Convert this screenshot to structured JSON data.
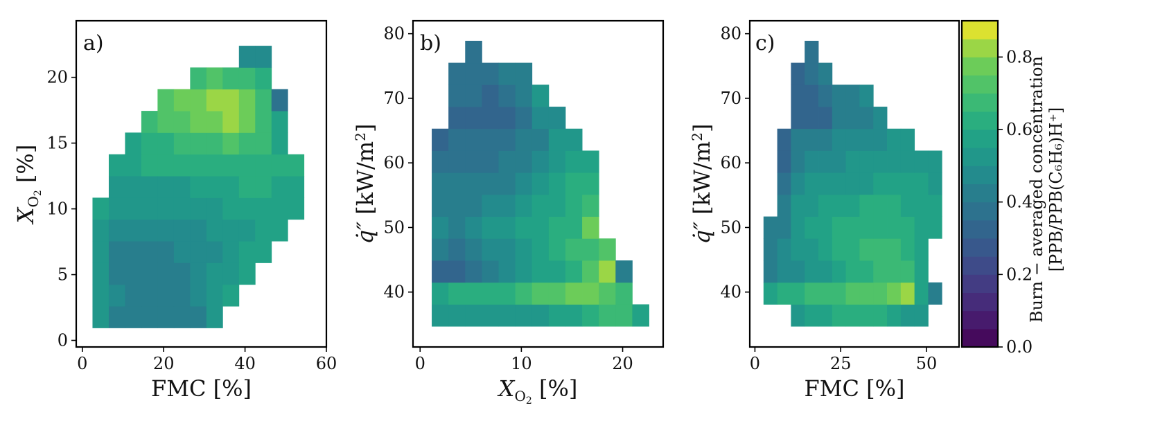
{
  "chart_data": [
    {
      "type": "heatmap",
      "panel_label": "a)",
      "xlabel": "FMC [%]",
      "ylabel": "X_O2 [%]",
      "xlim": [
        -1.5,
        60
      ],
      "ylim": [
        -0.5,
        24.3
      ],
      "xticks": [
        "0",
        "20",
        "40",
        "60"
      ],
      "yticks": [
        "0",
        "5",
        "10",
        "15",
        "20"
      ],
      "cell_width": 4.0,
      "cell_height": 1.65,
      "x_starts": [
        2.5,
        6.5,
        10.5,
        14.5,
        18.5,
        22.5,
        26.5,
        30.5,
        34.5,
        38.5,
        42.5,
        46.5,
        50.5
      ],
      "y_starts": [
        0.95,
        2.6,
        4.25,
        5.9,
        7.55,
        9.2,
        10.85,
        12.5,
        14.15,
        15.8,
        17.45,
        19.1,
        20.75
      ],
      "rows": [
        [
          0.52,
          0.44,
          0.42,
          0.4,
          0.4,
          0.42,
          0.44,
          0.5,
          null,
          null,
          null,
          null,
          null
        ],
        [
          0.52,
          0.45,
          0.42,
          0.42,
          0.42,
          0.44,
          0.46,
          0.5,
          0.55,
          null,
          null,
          null,
          null
        ],
        [
          0.5,
          0.44,
          0.42,
          0.42,
          0.42,
          0.44,
          0.46,
          0.5,
          0.52,
          0.56,
          null,
          null,
          null
        ],
        [
          0.5,
          0.44,
          0.43,
          0.43,
          0.44,
          0.45,
          0.46,
          0.48,
          0.52,
          0.55,
          0.58,
          null,
          null
        ],
        [
          0.5,
          0.45,
          0.45,
          0.45,
          0.46,
          0.47,
          0.48,
          0.5,
          0.52,
          0.54,
          0.56,
          0.58,
          null
        ],
        [
          0.58,
          0.52,
          0.5,
          0.52,
          0.52,
          0.52,
          0.54,
          0.54,
          0.56,
          0.58,
          0.58,
          0.58,
          0.56
        ],
        [
          null,
          0.52,
          0.54,
          0.54,
          0.54,
          0.54,
          0.56,
          0.58,
          0.58,
          0.62,
          0.62,
          0.58,
          0.58
        ],
        [
          null,
          0.56,
          0.58,
          0.6,
          0.6,
          0.6,
          0.62,
          0.62,
          0.62,
          0.64,
          0.62,
          0.6,
          0.62
        ],
        [
          null,
          null,
          0.58,
          0.64,
          0.64,
          0.68,
          0.68,
          0.7,
          0.72,
          0.7,
          0.7,
          0.58,
          null
        ],
        [
          null,
          null,
          null,
          0.7,
          0.72,
          0.74,
          0.78,
          0.78,
          0.8,
          0.76,
          0.66,
          0.55,
          null
        ],
        [
          null,
          null,
          null,
          null,
          0.72,
          0.76,
          0.78,
          0.8,
          0.82,
          0.76,
          0.66,
          0.38,
          null
        ],
        [
          null,
          null,
          null,
          null,
          null,
          null,
          0.66,
          0.72,
          0.7,
          0.68,
          0.62,
          null,
          null
        ],
        [
          null,
          null,
          null,
          null,
          null,
          null,
          null,
          null,
          null,
          0.48,
          0.48,
          null,
          null
        ]
      ]
    },
    {
      "type": "heatmap",
      "panel_label": "b)",
      "xlabel": "X_O2 [%]",
      "ylabel": "q'' [kW/m2]",
      "xlim": [
        -0.7,
        24.0
      ],
      "ylim": [
        31.5,
        82.0
      ],
      "xticks": [
        "0",
        "10",
        "20"
      ],
      "yticks": [
        "40",
        "50",
        "60",
        "70",
        "80"
      ],
      "cell_width": 1.65,
      "cell_height": 3.4,
      "x_starts": [
        1.15,
        2.8,
        4.45,
        6.1,
        7.75,
        9.4,
        11.05,
        12.7,
        14.35,
        16.0,
        17.65,
        19.3,
        20.95
      ],
      "y_starts": [
        34.7,
        38.1,
        41.5,
        44.9,
        48.3,
        51.7,
        55.1,
        58.5,
        61.9,
        65.3,
        68.7,
        72.1,
        75.5
      ],
      "rows": [
        [
          0.52,
          0.52,
          0.52,
          0.52,
          0.54,
          0.54,
          0.54,
          0.56,
          0.58,
          0.6,
          0.66,
          0.68,
          0.56
        ],
        [
          0.58,
          0.6,
          0.62,
          0.64,
          0.64,
          0.68,
          0.74,
          0.74,
          0.76,
          0.78,
          0.74,
          0.7,
          null
        ],
        [
          0.34,
          0.34,
          0.38,
          0.42,
          0.46,
          0.52,
          0.56,
          0.58,
          0.64,
          0.74,
          0.84,
          0.44,
          null
        ],
        [
          0.4,
          0.38,
          0.44,
          0.46,
          0.48,
          0.54,
          0.58,
          0.62,
          0.68,
          0.7,
          0.72,
          null,
          null
        ],
        [
          0.46,
          0.44,
          0.48,
          0.5,
          0.54,
          0.56,
          0.58,
          0.62,
          0.64,
          0.76,
          null,
          null,
          null
        ],
        [
          0.42,
          0.4,
          0.42,
          0.46,
          0.48,
          0.52,
          0.56,
          0.58,
          0.64,
          0.68,
          null,
          null,
          null
        ],
        [
          0.4,
          0.4,
          0.4,
          0.44,
          0.44,
          0.48,
          0.52,
          0.56,
          0.6,
          0.64,
          null,
          null,
          null
        ],
        [
          0.38,
          0.38,
          0.38,
          0.38,
          0.4,
          0.42,
          0.46,
          0.5,
          0.56,
          0.58,
          null,
          null,
          null
        ],
        [
          0.3,
          0.36,
          0.36,
          0.36,
          0.38,
          0.4,
          0.44,
          0.5,
          0.52,
          null,
          null,
          null,
          null
        ],
        [
          null,
          0.34,
          0.32,
          0.32,
          0.32,
          0.38,
          0.46,
          0.48,
          null,
          null,
          null,
          null,
          null
        ],
        [
          null,
          0.36,
          0.36,
          0.34,
          0.36,
          0.4,
          0.5,
          null,
          null,
          null,
          null,
          null,
          null
        ],
        [
          null,
          0.38,
          0.36,
          0.36,
          0.44,
          0.44,
          null,
          null,
          null,
          null,
          null,
          null,
          null
        ],
        [
          null,
          null,
          0.36,
          null,
          null,
          null,
          null,
          null,
          null,
          null,
          null,
          null,
          null
        ]
      ]
    },
    {
      "type": "heatmap",
      "panel_label": "c)",
      "xlabel": "FMC [%]",
      "ylabel": "q'' [kW/m2]",
      "xlim": [
        -1.5,
        59.5
      ],
      "ylim": [
        31.5,
        82.0
      ],
      "xticks": [
        "0",
        "25",
        "50"
      ],
      "yticks": [
        "40",
        "50",
        "60",
        "70",
        "80"
      ],
      "cell_width": 4.0,
      "cell_height": 3.4,
      "x_starts": [
        2.5,
        6.5,
        10.5,
        14.5,
        18.5,
        22.5,
        26.5,
        30.5,
        34.5,
        38.5,
        42.5,
        46.5,
        50.5
      ],
      "y_starts": [
        34.7,
        38.1,
        41.5,
        44.9,
        48.3,
        51.7,
        55.1,
        58.5,
        61.9,
        65.3,
        68.7,
        72.1,
        75.5
      ],
      "rows": [
        [
          null,
          null,
          0.54,
          0.56,
          0.58,
          0.62,
          0.64,
          0.62,
          0.6,
          0.56,
          0.52,
          0.5,
          null
        ],
        [
          0.58,
          0.6,
          0.64,
          0.66,
          0.68,
          0.7,
          0.72,
          0.74,
          0.74,
          0.76,
          0.82,
          0.58,
          0.42
        ],
        [
          0.44,
          0.46,
          0.48,
          0.5,
          0.52,
          0.56,
          0.6,
          0.64,
          0.68,
          0.7,
          0.7,
          0.56,
          null
        ],
        [
          0.44,
          0.46,
          0.5,
          0.52,
          0.56,
          0.6,
          0.64,
          0.66,
          0.68,
          0.66,
          0.64,
          0.56,
          null
        ],
        [
          0.4,
          0.42,
          0.52,
          0.56,
          0.58,
          0.62,
          0.62,
          0.64,
          0.64,
          0.62,
          0.6,
          0.58,
          0.58
        ],
        [
          null,
          0.4,
          0.52,
          0.54,
          0.56,
          0.56,
          0.58,
          0.6,
          0.6,
          0.6,
          0.58,
          0.58,
          0.56
        ],
        [
          null,
          0.36,
          0.48,
          0.52,
          0.52,
          0.54,
          0.54,
          0.54,
          0.56,
          0.56,
          0.56,
          0.56,
          0.54
        ],
        [
          null,
          0.34,
          0.44,
          0.46,
          0.46,
          0.48,
          0.5,
          0.5,
          0.5,
          0.52,
          0.54,
          0.52,
          0.54
        ],
        [
          null,
          0.32,
          0.4,
          0.42,
          0.44,
          0.46,
          0.46,
          0.48,
          0.48,
          0.5,
          0.52,
          null,
          null
        ],
        [
          null,
          null,
          0.3,
          0.3,
          0.34,
          0.4,
          0.42,
          0.44,
          0.48,
          null,
          null,
          null,
          null
        ],
        [
          null,
          null,
          0.34,
          0.34,
          0.36,
          0.4,
          0.42,
          0.46,
          null,
          null,
          null,
          null,
          null
        ],
        [
          null,
          null,
          0.34,
          0.36,
          0.4,
          null,
          null,
          null,
          null,
          null,
          null,
          null,
          null
        ],
        [
          null,
          null,
          null,
          0.38,
          null,
          null,
          null,
          null,
          null,
          null,
          null,
          null,
          null
        ]
      ]
    }
  ],
  "colorbar": {
    "colormap": "viridis",
    "vmin": 0.0,
    "vmax": 0.9,
    "n_levels": 18,
    "ticks": [
      {
        "value": 0.0,
        "label": "0.0"
      },
      {
        "value": 0.2,
        "label": "0.2"
      },
      {
        "value": 0.4,
        "label": "0.4"
      },
      {
        "value": 0.6,
        "label": "0.6"
      },
      {
        "value": 0.8,
        "label": "0.8"
      }
    ],
    "label_line1": "Burn − averaged concentration",
    "label_line2": "[PPB/PPB(C₆H₆)H⁺]"
  }
}
